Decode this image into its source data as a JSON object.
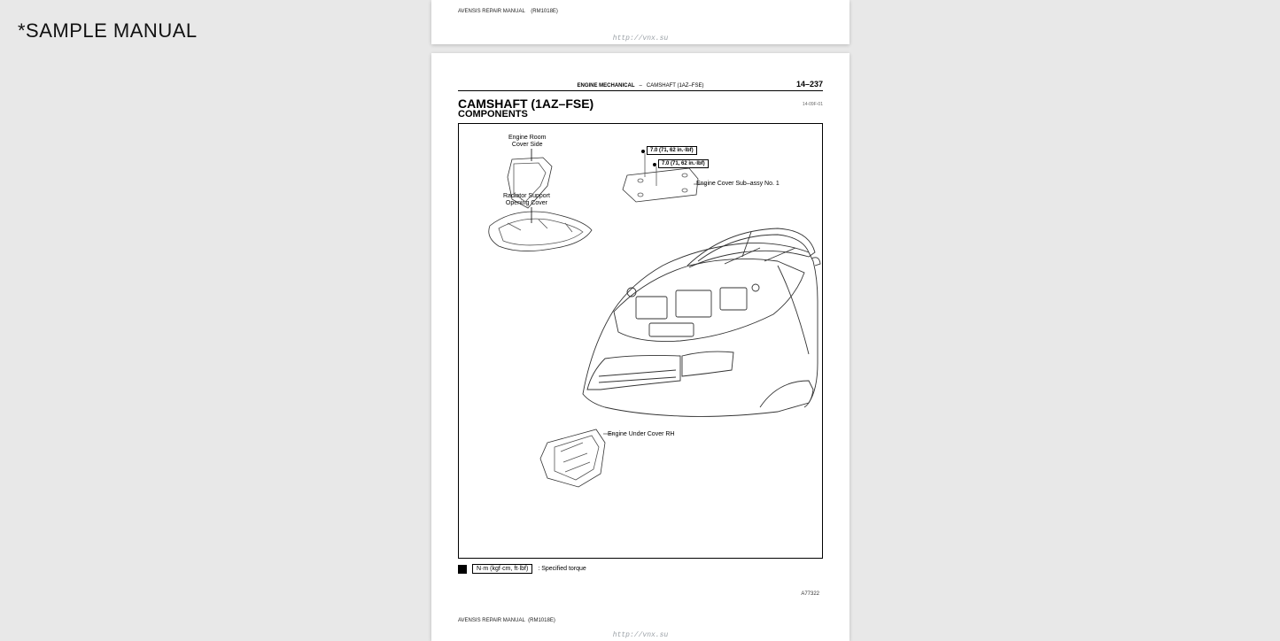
{
  "watermark": "*SAMPLE MANUAL",
  "footer": {
    "manual": "AVENSIS REPAIR MANUAL",
    "code": "(RM1018E)",
    "url": "http://vnx.su"
  },
  "page": {
    "number": "14–237",
    "breadcrumb_section": "ENGINE MECHANICAL",
    "breadcrumb_sep": "–",
    "breadcrumb_item": "CAMSHAFT (1AZ–FSE)",
    "title": "CAMSHAFT (1AZ–FSE)",
    "subcode": "14-09F-01",
    "subtitle": "COMPONENTS",
    "figure_code": "A77322"
  },
  "labels": {
    "engine_room_cover": "Engine Room\nCover Side",
    "radiator_support": "Radiator Support\nOpening Cover",
    "engine_cover_sub": "Engine Cover Sub–assy No. 1",
    "engine_under_cover": "Engine Under Cover RH"
  },
  "torque": {
    "t1": "7.0 (71, 62 in.·lbf)",
    "t2": "7.0 (71, 62 in.·lbf)"
  },
  "legend": {
    "unit": "N·m (kgf·cm, ft·lbf)",
    "note": ": Specified torque"
  },
  "colors": {
    "bg": "#e8e8e8",
    "paper": "#ffffff",
    "line": "#000000",
    "part_stroke": "#555555"
  }
}
